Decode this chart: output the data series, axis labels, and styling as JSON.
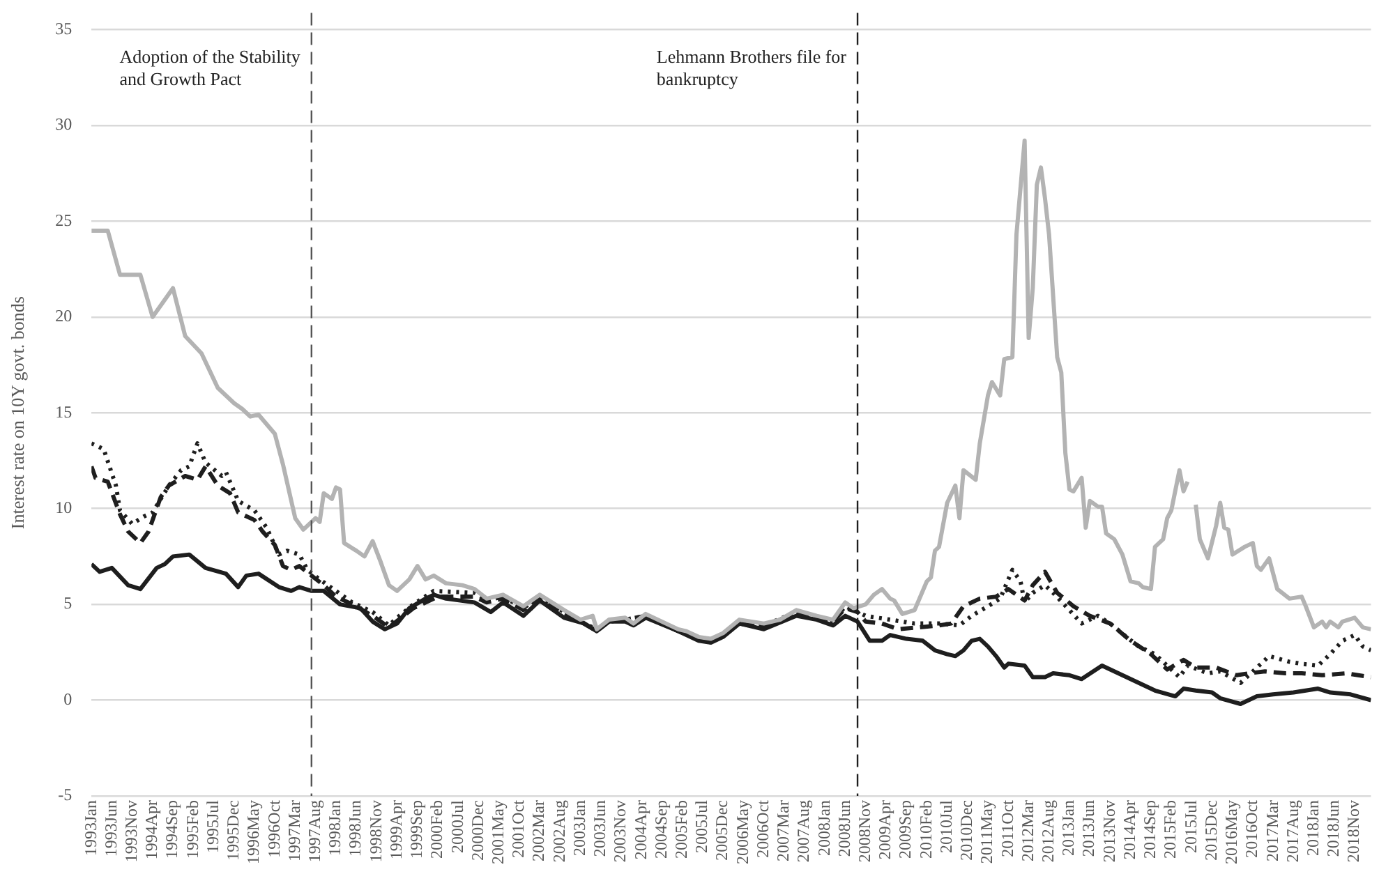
{
  "chart_data": {
    "type": "line",
    "ylabel": "Interest rate on 10Y govt. bonds",
    "xlim": [
      "1993-01",
      "2019-03"
    ],
    "ylim": [
      -5,
      35
    ],
    "yticks": [
      -5,
      0,
      5,
      10,
      15,
      20,
      25,
      30,
      35
    ],
    "xticks": [
      {
        "value": "1993-01",
        "label": "1993Jan"
      },
      {
        "value": "1993-06",
        "label": "1993Jun"
      },
      {
        "value": "1993-11",
        "label": "1993Nov"
      },
      {
        "value": "1994-04",
        "label": "1994Apr"
      },
      {
        "value": "1994-09",
        "label": "1994Sep"
      },
      {
        "value": "1995-02",
        "label": "1995Feb"
      },
      {
        "value": "1995-07",
        "label": "1995Jul"
      },
      {
        "value": "1995-12",
        "label": "1995Dec"
      },
      {
        "value": "1996-05",
        "label": "1996May"
      },
      {
        "value": "1996-10",
        "label": "1996Oct"
      },
      {
        "value": "1997-03",
        "label": "1997Mar"
      },
      {
        "value": "1997-08",
        "label": "1997Aug"
      },
      {
        "value": "1998-01",
        "label": "1998Jan"
      },
      {
        "value": "1998-06",
        "label": "1998Jun"
      },
      {
        "value": "1998-11",
        "label": "1998Nov"
      },
      {
        "value": "1999-04",
        "label": "1999Apr"
      },
      {
        "value": "1999-09",
        "label": "1999Sep"
      },
      {
        "value": "2000-02",
        "label": "2000Feb"
      },
      {
        "value": "2000-07",
        "label": "2000Jul"
      },
      {
        "value": "2000-12",
        "label": "2000Dec"
      },
      {
        "value": "2001-05",
        "label": "2001May"
      },
      {
        "value": "2001-10",
        "label": "2001Oct"
      },
      {
        "value": "2002-03",
        "label": "2002Mar"
      },
      {
        "value": "2002-08",
        "label": "2002Aug"
      },
      {
        "value": "2003-01",
        "label": "2003Jan"
      },
      {
        "value": "2003-06",
        "label": "2003Jun"
      },
      {
        "value": "2003-11",
        "label": "2003Nov"
      },
      {
        "value": "2004-04",
        "label": "2004Apr"
      },
      {
        "value": "2004-09",
        "label": "2004Sep"
      },
      {
        "value": "2005-02",
        "label": "2005Feb"
      },
      {
        "value": "2005-07",
        "label": "2005Jul"
      },
      {
        "value": "2005-12",
        "label": "2005Dec"
      },
      {
        "value": "2006-05",
        "label": "2006May"
      },
      {
        "value": "2006-10",
        "label": "2006Oct"
      },
      {
        "value": "2007-03",
        "label": "2007Mar"
      },
      {
        "value": "2007-08",
        "label": "2007Aug"
      },
      {
        "value": "2008-01",
        "label": "2008Jan"
      },
      {
        "value": "2008-06",
        "label": "2008Jun"
      },
      {
        "value": "2008-11",
        "label": "2008Nov"
      },
      {
        "value": "2009-04",
        "label": "2009Apr"
      },
      {
        "value": "2009-09",
        "label": "2009Sep"
      },
      {
        "value": "2010-02",
        "label": "2010Feb"
      },
      {
        "value": "2010-07",
        "label": "2010Jul"
      },
      {
        "value": "2010-12",
        "label": "2010Dec"
      },
      {
        "value": "2011-05",
        "label": "2011May"
      },
      {
        "value": "2011-10",
        "label": "2011Oct"
      },
      {
        "value": "2012-03",
        "label": "2012Mar"
      },
      {
        "value": "2012-08",
        "label": "2012Aug"
      },
      {
        "value": "2013-01",
        "label": "2013Jan"
      },
      {
        "value": "2013-06",
        "label": "2013Jun"
      },
      {
        "value": "2013-11",
        "label": "2013Nov"
      },
      {
        "value": "2014-04",
        "label": "2014Apr"
      },
      {
        "value": "2014-09",
        "label": "2014Sep"
      },
      {
        "value": "2015-02",
        "label": "2015Feb"
      },
      {
        "value": "2015-07",
        "label": "2015Jul"
      },
      {
        "value": "2015-12",
        "label": "2015Dec"
      },
      {
        "value": "2016-05",
        "label": "2016May"
      },
      {
        "value": "2016-10",
        "label": "2016Oct"
      },
      {
        "value": "2017-03",
        "label": "2017Mar"
      },
      {
        "value": "2017-08",
        "label": "2017Aug"
      },
      {
        "value": "2018-01",
        "label": "2018Jan"
      },
      {
        "value": "2018-06",
        "label": "2018Jun"
      },
      {
        "value": "2018-11",
        "label": "2018Nov"
      }
    ],
    "grid": "y",
    "ref_lines": [
      {
        "axis": "x",
        "value": "1997-07",
        "label": "Adoption of the Stability and Growth Pact",
        "color": "#555555",
        "line_style": "dashed"
      },
      {
        "axis": "x",
        "value": "2008-09",
        "label": "Lehmann Brothers file for bankruptcy",
        "color": "#1e1e1e",
        "line_style": "dashed"
      }
    ],
    "series": [
      {
        "color": "#b3b3b3",
        "line_style": "solid",
        "x": [
          "1993-01",
          "1993-05",
          "1993-08",
          "1994-01",
          "1994-04",
          "1994-09",
          "1994-12",
          "1995-04",
          "1995-08",
          "1995-12",
          "1996-02",
          "1996-04",
          "1996-06",
          "1996-10",
          "1996-12",
          "1997-03",
          "1997-05",
          "1997-08",
          "1997-09",
          "1997-10",
          "1997-12",
          "1998-01",
          "1998-02",
          "1998-03",
          "1998-06",
          "1998-08",
          "1998-10",
          "1998-12",
          "1999-02",
          "1999-04",
          "1999-07",
          "1999-09",
          "1999-11",
          "2000-01",
          "2000-04",
          "2000-08",
          "2000-11",
          "2001-02",
          "2001-06",
          "2001-11",
          "2002-03",
          "2002-09",
          "2003-01",
          "2003-04",
          "2003-05",
          "2003-08",
          "2003-12",
          "2004-02",
          "2004-05",
          "2004-09",
          "2005-01",
          "2005-03",
          "2005-06",
          "2005-09",
          "2005-12",
          "2006-04",
          "2006-07",
          "2006-10",
          "2007-02",
          "2007-06",
          "2007-11",
          "2008-03",
          "2008-06",
          "2008-08",
          "2008-11",
          "2009-01",
          "2009-03",
          "2009-05",
          "2009-06",
          "2009-08",
          "2009-11",
          "2010-02",
          "2010-03",
          "2010-04",
          "2010-05",
          "2010-07",
          "2010-09",
          "2010-10",
          "2010-11",
          "2011-02",
          "2011-03",
          "2011-05",
          "2011-06",
          "2011-08",
          "2011-09",
          "2011-11",
          "2011-12",
          "2012-02",
          "2012-03",
          "2012-04",
          "2012-05",
          "2012-06",
          "2012-07",
          "2012-08",
          "2012-10",
          "2012-11",
          "2012-12",
          "2013-01",
          "2013-02",
          "2013-04",
          "2013-05",
          "2013-06",
          "2013-08",
          "2013-09",
          "2013-10",
          "2013-12",
          "2014-02",
          "2014-04",
          "2014-06",
          "2014-07",
          "2014-09",
          "2014-10",
          "2014-12",
          "2015-01",
          "2015-02",
          "2015-04",
          "2015-05",
          "2015-06",
          "2015-07",
          "2015-08",
          "2015-09",
          "2015-11",
          "2016-01",
          "2016-02",
          "2016-03",
          "2016-04",
          "2016-05",
          "2016-08",
          "2016-10",
          "2016-11",
          "2016-12",
          "2017-02",
          "2017-04",
          "2017-07",
          "2017-10",
          "2017-11",
          "2018-01",
          "2018-03",
          "2018-04",
          "2018-05",
          "2018-07",
          "2018-08",
          "2018-11",
          "2019-01",
          "2019-03"
        ],
        "values": [
          24.5,
          24.5,
          22.2,
          22.2,
          20.0,
          21.5,
          19.0,
          18.1,
          16.3,
          15.5,
          15.2,
          14.8,
          14.9,
          13.9,
          12.3,
          9.5,
          8.9,
          9.5,
          9.3,
          10.8,
          10.5,
          11.1,
          11.0,
          8.2,
          7.8,
          7.5,
          8.3,
          7.2,
          6.0,
          5.7,
          6.3,
          7.0,
          6.3,
          6.5,
          6.1,
          6.0,
          5.8,
          5.3,
          5.5,
          4.9,
          5.5,
          4.7,
          4.2,
          4.4,
          3.7,
          4.2,
          4.3,
          4.0,
          4.5,
          4.1,
          3.7,
          3.6,
          3.3,
          3.2,
          3.5,
          4.2,
          4.1,
          4.0,
          4.2,
          4.7,
          4.4,
          4.2,
          5.1,
          4.8,
          5.0,
          5.5,
          5.8,
          5.3,
          5.2,
          4.5,
          4.7,
          6.2,
          6.4,
          7.8,
          8.0,
          10.3,
          11.2,
          9.5,
          12.0,
          11.5,
          13.4,
          15.9,
          16.6,
          15.9,
          17.8,
          17.9,
          24.3,
          29.2,
          18.9,
          21.5,
          26.9,
          27.8,
          26.2,
          24.3,
          17.9,
          17.1,
          12.9,
          11.0,
          10.9,
          11.6,
          9.0,
          10.4,
          10.1,
          10.1,
          8.7,
          8.4,
          7.6,
          6.2,
          6.1,
          5.9,
          5.8,
          8.0,
          8.4,
          9.5,
          9.9,
          12.0,
          10.9,
          11.4,
          null,
          10.2,
          8.4,
          7.4,
          9.1,
          10.3,
          9.0,
          8.9,
          7.6,
          8.0,
          8.2,
          7.0,
          6.8,
          7.4,
          5.8,
          5.3,
          5.4,
          4.9,
          3.8,
          4.1,
          3.8,
          4.1,
          3.8,
          4.1,
          4.3,
          3.8,
          3.7
        ]
      },
      {
        "color": "#1e1e1e",
        "line_style": "dotted",
        "x": [
          "1993-01",
          "1993-04",
          "1993-07",
          "1993-08",
          "1993-11",
          "1994-02",
          "1994-04",
          "1994-08",
          "1994-11",
          "1995-01",
          "1995-03",
          "1995-05",
          "1995-09",
          "1995-10",
          "1996-01",
          "1996-05",
          "1996-08",
          "1996-11",
          "1997-01",
          "1997-04",
          "1997-06",
          "1997-09",
          "1998-01",
          "1998-05",
          "1998-10",
          "1999-02",
          "1999-04",
          "1999-08",
          "2000-01",
          "2000-11",
          "2001-02",
          "2001-06",
          "2001-11",
          "2002-03",
          "2002-09",
          "2003-01",
          "2003-05",
          "2003-08",
          "2003-12",
          "2004-05",
          "2005-01",
          "2005-06",
          "2005-09",
          "2005-12",
          "2006-04",
          "2006-10",
          "2007-06",
          "2007-11",
          "2008-03",
          "2008-06",
          "2008-09",
          "2008-11",
          "2009-05",
          "2009-11",
          "2010-05",
          "2010-10",
          "2011-01",
          "2011-05",
          "2011-08",
          "2011-11",
          "2012-01",
          "2012-02",
          "2012-04",
          "2012-07",
          "2012-09",
          "2013-01",
          "2013-04",
          "2013-08",
          "2013-11",
          "2014-03",
          "2014-06",
          "2014-10",
          "2015-01",
          "2015-04",
          "2015-06",
          "2015-11",
          "2016-02",
          "2016-07",
          "2016-11",
          "2017-02",
          "2017-07",
          "2017-10",
          "2018-02",
          "2018-05",
          "2018-08",
          "2018-11",
          "2019-01",
          "2019-03"
        ],
        "values": [
          13.4,
          13.1,
          11.2,
          9.9,
          9.2,
          9.6,
          9.8,
          11.2,
          12.0,
          12.2,
          13.4,
          12.4,
          11.7,
          11.9,
          10.4,
          9.9,
          9.0,
          7.6,
          7.8,
          7.6,
          6.8,
          6.3,
          5.7,
          5.1,
          4.6,
          3.9,
          4.3,
          5.0,
          5.7,
          5.6,
          5.2,
          5.4,
          4.8,
          5.4,
          4.6,
          4.1,
          3.7,
          4.1,
          4.2,
          4.4,
          3.6,
          3.2,
          3.1,
          3.4,
          4.1,
          3.9,
          4.6,
          4.3,
          4.1,
          4.9,
          4.6,
          4.4,
          4.2,
          4.0,
          4.0,
          3.9,
          4.4,
          4.9,
          5.3,
          6.8,
          6.2,
          5.1,
          5.6,
          6.0,
          5.6,
          4.7,
          4.0,
          4.4,
          4.0,
          3.3,
          2.8,
          2.4,
          1.8,
          1.2,
          1.8,
          1.4,
          1.5,
          0.9,
          1.7,
          2.3,
          2.0,
          1.9,
          1.8,
          2.4,
          3.1,
          3.4,
          2.8,
          2.6
        ]
      },
      {
        "color": "#1e1e1e",
        "line_style": "dashed",
        "x": [
          "1993-01",
          "1993-02",
          "1993-05",
          "1993-08",
          "1993-10",
          "1994-01",
          "1994-03",
          "1994-06",
          "1994-08",
          "1994-12",
          "1995-03",
          "1995-05",
          "1995-08",
          "1995-11",
          "1996-01",
          "1996-05",
          "1996-07",
          "1996-10",
          "1996-12",
          "1997-02",
          "1997-04",
          "1997-07",
          "1997-10",
          "1998-01",
          "1998-05",
          "1998-10",
          "1999-02",
          "1999-08",
          "2000-02",
          "2000-11",
          "2001-02",
          "2001-06",
          "2001-11",
          "2002-03",
          "2002-09",
          "2003-01",
          "2003-05",
          "2003-08",
          "2003-12",
          "2004-05",
          "2005-01",
          "2005-06",
          "2005-09",
          "2005-12",
          "2006-04",
          "2006-10",
          "2007-06",
          "2007-11",
          "2008-03",
          "2008-06",
          "2008-09",
          "2008-11",
          "2009-03",
          "2009-07",
          "2009-12",
          "2010-05",
          "2010-08",
          "2010-11",
          "2011-03",
          "2011-07",
          "2011-10",
          "2012-02",
          "2012-04",
          "2012-07",
          "2012-10",
          "2013-02",
          "2013-06",
          "2013-11",
          "2014-04",
          "2014-09",
          "2015-01",
          "2015-05",
          "2015-08",
          "2016-01",
          "2016-06",
          "2016-09",
          "2017-01",
          "2017-06",
          "2017-10",
          "2018-03",
          "2018-09",
          "2019-03"
        ],
        "values": [
          12.2,
          11.6,
          11.4,
          9.7,
          8.8,
          8.2,
          8.8,
          10.6,
          11.2,
          11.7,
          11.5,
          12.2,
          11.2,
          10.8,
          9.8,
          9.4,
          8.8,
          8.1,
          7.0,
          6.8,
          7.0,
          6.5,
          6.0,
          5.4,
          5.0,
          4.4,
          3.8,
          4.8,
          5.4,
          5.4,
          5.1,
          5.3,
          4.7,
          5.3,
          4.5,
          4.1,
          3.6,
          4.1,
          4.2,
          4.4,
          3.6,
          3.2,
          3.1,
          3.4,
          4.0,
          3.8,
          4.6,
          4.3,
          4.1,
          4.8,
          4.6,
          4.1,
          4.0,
          3.7,
          3.8,
          3.9,
          4.0,
          4.9,
          5.3,
          5.4,
          5.8,
          5.2,
          6.0,
          6.7,
          5.6,
          4.9,
          4.4,
          4.0,
          3.1,
          2.4,
          1.6,
          2.1,
          1.7,
          1.7,
          1.3,
          1.4,
          1.5,
          1.4,
          1.4,
          1.3,
          1.4,
          1.2
        ]
      },
      {
        "color": "#1e1e1e",
        "line_style": "solid",
        "x": [
          "1993-01",
          "1993-03",
          "1993-06",
          "1993-10",
          "1994-01",
          "1994-05",
          "1994-07",
          "1994-09",
          "1995-01",
          "1995-05",
          "1995-10",
          "1996-01",
          "1996-03",
          "1996-06",
          "1996-11",
          "1997-02",
          "1997-04",
          "1997-07",
          "1997-10",
          "1998-02",
          "1998-07",
          "1998-10",
          "1999-01",
          "1999-04",
          "1999-07",
          "1999-11",
          "2000-01",
          "2000-04",
          "2000-11",
          "2001-03",
          "2001-06",
          "2001-11",
          "2002-03",
          "2002-09",
          "2003-02",
          "2003-05",
          "2003-08",
          "2003-12",
          "2004-02",
          "2004-05",
          "2005-01",
          "2005-06",
          "2005-09",
          "2005-12",
          "2006-04",
          "2006-10",
          "2007-06",
          "2007-11",
          "2008-03",
          "2008-06",
          "2008-09",
          "2008-12",
          "2009-03",
          "2009-05",
          "2009-09",
          "2010-01",
          "2010-04",
          "2010-07",
          "2010-09",
          "2010-11",
          "2011-01",
          "2011-03",
          "2011-05",
          "2011-07",
          "2011-09",
          "2011-10",
          "2012-02",
          "2012-04",
          "2012-07",
          "2012-09",
          "2013-01",
          "2013-04",
          "2013-09",
          "2013-12",
          "2014-05",
          "2014-10",
          "2015-03",
          "2015-05",
          "2015-08",
          "2015-12",
          "2016-02",
          "2016-07",
          "2016-11",
          "2017-03",
          "2017-08",
          "2018-02",
          "2018-05",
          "2018-10",
          "2019-03"
        ],
        "values": [
          7.1,
          6.7,
          6.9,
          6.0,
          5.8,
          6.9,
          7.1,
          7.5,
          7.6,
          6.9,
          6.6,
          5.9,
          6.5,
          6.6,
          5.9,
          5.7,
          5.9,
          5.7,
          5.7,
          5.0,
          4.8,
          4.1,
          3.7,
          4.0,
          4.8,
          5.3,
          5.5,
          5.3,
          5.1,
          4.6,
          5.1,
          4.4,
          5.2,
          4.3,
          4.0,
          3.6,
          4.1,
          4.1,
          3.9,
          4.3,
          3.6,
          3.1,
          3.0,
          3.3,
          4.0,
          3.7,
          4.4,
          4.2,
          3.9,
          4.4,
          4.1,
          3.1,
          3.1,
          3.4,
          3.2,
          3.1,
          2.6,
          2.4,
          2.3,
          2.6,
          3.1,
          3.2,
          2.8,
          2.3,
          1.7,
          1.9,
          1.8,
          1.2,
          1.2,
          1.4,
          1.3,
          1.1,
          1.8,
          1.5,
          1.0,
          0.5,
          0.2,
          0.6,
          0.5,
          0.4,
          0.1,
          -0.2,
          0.2,
          0.3,
          0.4,
          0.6,
          0.4,
          0.3,
          0.0
        ]
      }
    ]
  }
}
